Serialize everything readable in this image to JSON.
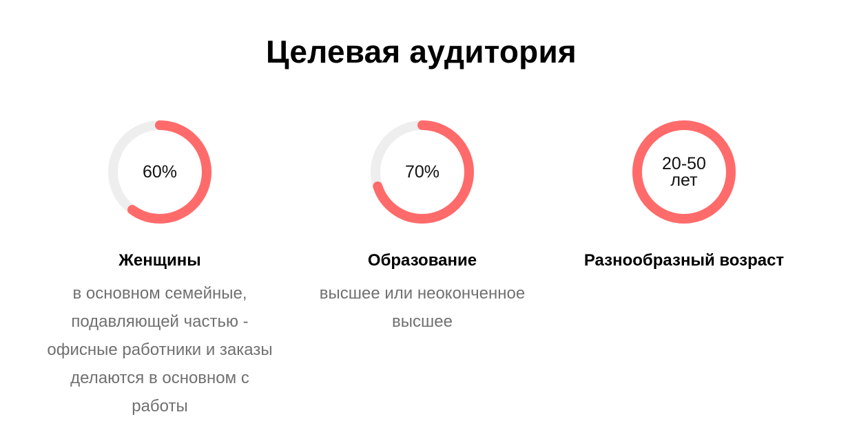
{
  "page": {
    "title": "Целевая аудитория"
  },
  "colors": {
    "accent": "#ff6b6b",
    "track": "#eeeeee",
    "description": "#707070"
  },
  "stats": [
    {
      "value_label": "60%",
      "value_label_2": "",
      "fill_fraction": 0.6,
      "title": "Женщины",
      "description": "в основном семейные, подавляющей частью - офисные работники и заказы делаются в основном с работы"
    },
    {
      "value_label": "70%",
      "value_label_2": "",
      "fill_fraction": 0.7,
      "title": "Образование",
      "description": "высшее или неоконченное высшее"
    },
    {
      "value_label": "20-50",
      "value_label_2": "лет",
      "fill_fraction": 1.0,
      "title": "Разнообразный возраст",
      "description": ""
    }
  ]
}
